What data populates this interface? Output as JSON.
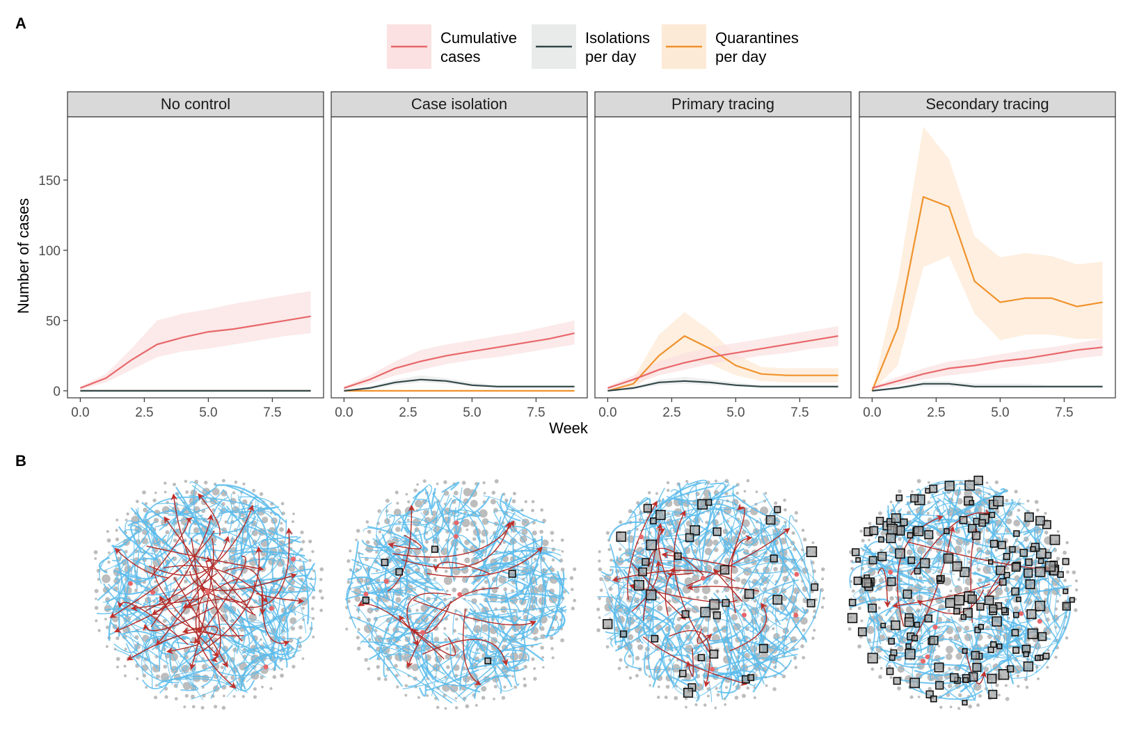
{
  "panel_a_label": "A",
  "panel_b_label": "B",
  "legend": [
    {
      "line1": "Cumulative",
      "line2": "cases",
      "color": "#e8676a",
      "fill": "#fbe1e2"
    },
    {
      "line1": "Isolations",
      "line2": "per day",
      "color": "#33474a",
      "fill": "#e8ebea"
    },
    {
      "line1": "Quarantines",
      "line2": "per day",
      "color": "#f0922b",
      "fill": "#fdead6"
    }
  ],
  "chart_data": {
    "type": "line",
    "xlabel": "Week",
    "ylabel": "Number of cases",
    "xlim": [
      -0.5,
      9.5
    ],
    "ylim": [
      -5,
      195
    ],
    "xticks": [
      0.0,
      2.5,
      5.0,
      7.5
    ],
    "xtick_labels": [
      "0.0",
      "2.5",
      "5.0",
      "7.5"
    ],
    "yticks": [
      0,
      50,
      100,
      150
    ],
    "ytick_labels": [
      "0",
      "50",
      "100",
      "150"
    ],
    "x": [
      0,
      1,
      2,
      3,
      4,
      5,
      6,
      7,
      8,
      9
    ],
    "facets": [
      {
        "title": "No control",
        "series": [
          {
            "name": "Cumulative cases",
            "values": [
              2,
              9,
              22,
              33,
              38,
              42,
              44,
              47,
              50,
              53
            ],
            "lower": [
              1,
              6,
              15,
              24,
              28,
              30,
              33,
              36,
              39,
              41
            ],
            "upper": [
              3,
              12,
              30,
              50,
              55,
              58,
              62,
              65,
              68,
              71
            ]
          },
          {
            "name": "Isolations per day",
            "values": [
              0,
              0,
              0,
              0,
              0,
              0,
              0,
              0,
              0,
              0
            ],
            "lower": [
              0,
              0,
              0,
              0,
              0,
              0,
              0,
              0,
              0,
              0
            ],
            "upper": [
              0,
              0,
              0,
              0,
              0,
              0,
              0,
              0,
              0,
              0
            ]
          },
          {
            "name": "Quarantines per day",
            "values": [
              0,
              0,
              0,
              0,
              0,
              0,
              0,
              0,
              0,
              0
            ],
            "lower": [
              0,
              0,
              0,
              0,
              0,
              0,
              0,
              0,
              0,
              0
            ],
            "upper": [
              0,
              0,
              0,
              0,
              0,
              0,
              0,
              0,
              0,
              0
            ]
          }
        ]
      },
      {
        "title": "Case isolation",
        "series": [
          {
            "name": "Cumulative cases",
            "values": [
              2,
              8,
              16,
              21,
              25,
              28,
              31,
              34,
              37,
              41
            ],
            "lower": [
              1,
              5,
              11,
              15,
              19,
              22,
              24,
              27,
              30,
              33
            ],
            "upper": [
              3,
              11,
              21,
              29,
              33,
              36,
              39,
              42,
              46,
              50
            ]
          },
          {
            "name": "Isolations per day",
            "values": [
              0,
              2,
              6,
              8,
              7,
              4,
              3,
              3,
              3,
              3
            ],
            "lower": [
              0,
              1,
              4,
              6,
              5,
              3,
              2,
              2,
              2,
              2
            ],
            "upper": [
              0,
              3,
              8,
              11,
              9,
              6,
              4,
              4,
              4,
              4
            ]
          },
          {
            "name": "Quarantines per day",
            "values": [
              0,
              0,
              0,
              0,
              0,
              0,
              0,
              0,
              0,
              0
            ],
            "lower": [
              0,
              0,
              0,
              0,
              0,
              0,
              0,
              0,
              0,
              0
            ],
            "upper": [
              0,
              0,
              0,
              0,
              0,
              0,
              0,
              0,
              0,
              0
            ]
          }
        ]
      },
      {
        "title": "Primary tracing",
        "series": [
          {
            "name": "Cumulative cases",
            "values": [
              2,
              8,
              15,
              20,
              24,
              27,
              30,
              33,
              36,
              39
            ],
            "lower": [
              1,
              5,
              11,
              15,
              19,
              22,
              25,
              27,
              30,
              32
            ],
            "upper": [
              3,
              11,
              21,
              27,
              31,
              34,
              37,
              40,
              43,
              46
            ]
          },
          {
            "name": "Isolations per day",
            "values": [
              0,
              2,
              6,
              7,
              6,
              4,
              3,
              3,
              3,
              3
            ],
            "lower": [
              0,
              1,
              4,
              5,
              4,
              3,
              2,
              2,
              2,
              2
            ],
            "upper": [
              0,
              3,
              8,
              10,
              8,
              6,
              4,
              4,
              4,
              4
            ]
          },
          {
            "name": "Quarantines per day",
            "values": [
              0,
              5,
              25,
              39,
              30,
              18,
              12,
              11,
              11,
              11
            ],
            "lower": [
              0,
              2,
              14,
              22,
              19,
              11,
              7,
              6,
              6,
              6
            ],
            "upper": [
              0,
              9,
              40,
              56,
              43,
              26,
              17,
              16,
              16,
              16
            ]
          }
        ]
      },
      {
        "title": "Secondary tracing",
        "series": [
          {
            "name": "Cumulative cases",
            "values": [
              2,
              7,
              12,
              16,
              18,
              21,
              23,
              26,
              29,
              31
            ],
            "lower": [
              1,
              4,
              8,
              11,
              13,
              16,
              18,
              20,
              23,
              25
            ],
            "upper": [
              3,
              10,
              16,
              21,
              23,
              26,
              29,
              31,
              34,
              37
            ]
          },
          {
            "name": "Isolations per day",
            "values": [
              0,
              2,
              5,
              5,
              3,
              3,
              3,
              3,
              3,
              3
            ],
            "lower": [
              0,
              1,
              3,
              3,
              2,
              2,
              2,
              2,
              2,
              2
            ],
            "upper": [
              0,
              3,
              7,
              7,
              5,
              5,
              5,
              4,
              4,
              4
            ]
          },
          {
            "name": "Quarantines per day",
            "values": [
              0,
              45,
              138,
              131,
              78,
              63,
              66,
              66,
              60,
              63
            ],
            "lower": [
              0,
              18,
              88,
              96,
              55,
              36,
              40,
              40,
              37,
              37
            ],
            "upper": [
              0,
              78,
              188,
              165,
              110,
              95,
              98,
              96,
              90,
              92
            ]
          }
        ]
      }
    ]
  }
}
